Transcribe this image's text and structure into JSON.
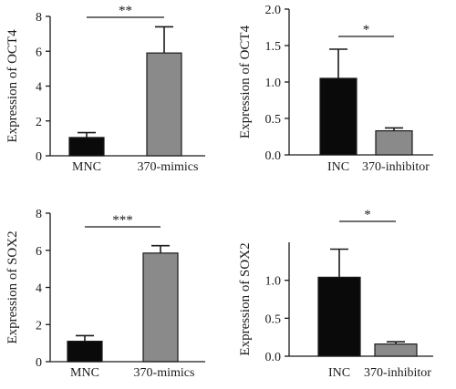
{
  "chart_data": [
    {
      "type": "bar",
      "categories": [
        "MNC",
        "370-mimics"
      ],
      "series": [
        {
          "values": [
            1.05,
            5.9
          ]
        }
      ],
      "errors": [
        0.28,
        1.5
      ],
      "bar_colors": [
        "#0a0a0a",
        "#8a8a8a"
      ],
      "ylabel": "Expression of OCT4",
      "ylim": [
        0,
        8
      ],
      "yticks": [
        "0",
        "2",
        "4",
        "6",
        "8"
      ],
      "yticks_values": [
        0,
        2,
        4,
        6,
        8
      ],
      "significance": "**"
    },
    {
      "type": "bar",
      "categories": [
        "INC",
        "370-inhibitor"
      ],
      "series": [
        {
          "values": [
            1.05,
            0.33
          ]
        }
      ],
      "errors": [
        0.4,
        0.04
      ],
      "bar_colors": [
        "#0a0a0a",
        "#8a8a8a"
      ],
      "ylabel": "Expression of OCT4",
      "ylim": [
        0,
        2.0
      ],
      "yticks": [
        "0.0",
        "0.5",
        "1.0",
        "1.5",
        "2.0"
      ],
      "yticks_values": [
        0,
        0.5,
        1.0,
        1.5,
        2.0
      ],
      "significance": "*"
    },
    {
      "type": "bar",
      "categories": [
        "MNC",
        "370-mimics"
      ],
      "series": [
        {
          "values": [
            1.1,
            5.85
          ]
        }
      ],
      "errors": [
        0.3,
        0.4
      ],
      "bar_colors": [
        "#0a0a0a",
        "#8a8a8a"
      ],
      "ylabel": "Expression of SOX2",
      "ylim": [
        0,
        8
      ],
      "yticks": [
        "0",
        "2",
        "4",
        "6",
        "8"
      ],
      "yticks_values": [
        0,
        2,
        4,
        6,
        8
      ],
      "significance": "***"
    },
    {
      "type": "bar",
      "categories": [
        "INC",
        "370-inhibitor"
      ],
      "series": [
        {
          "values": [
            1.04,
            0.16
          ]
        }
      ],
      "errors": [
        0.37,
        0.03
      ],
      "bar_colors": [
        "#0a0a0a",
        "#8a8a8a"
      ],
      "ylabel": "Expression of SOX2",
      "ylim": [
        0,
        1.5
      ],
      "yticks": [
        "0.0",
        "0.5",
        "1.0"
      ],
      "yticks_values": [
        0,
        0.5,
        1.0
      ],
      "significance": "*"
    }
  ]
}
